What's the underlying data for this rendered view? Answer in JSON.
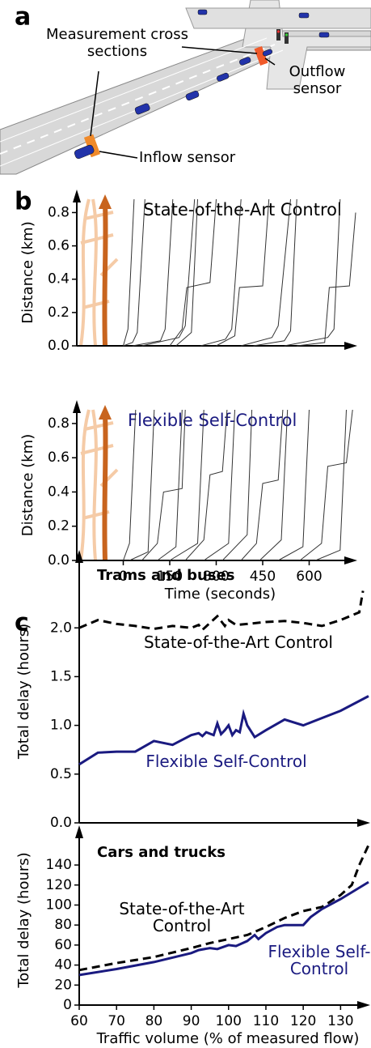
{
  "panel_labels": [
    "a",
    "b",
    "c"
  ],
  "illustration": {
    "annotations": [
      "Measurement cross sections",
      "Outflow sensor",
      "Inflow sensor"
    ]
  },
  "chart_data": [
    {
      "type": "line",
      "title": "State-of-the-Art Control",
      "title_color": "#000000",
      "ylabel": "Distance (km)",
      "xlim": [
        -150,
        750
      ],
      "ylim": [
        0,
        0.88
      ],
      "yticks": [
        {
          "value": 0,
          "label": "0.0"
        },
        0.2,
        0.4,
        0.6,
        0.8
      ],
      "series": [
        {
          "color": "#333333",
          "x": [
            0,
            15,
            35
          ],
          "values": [
            0,
            0.1,
            0.88
          ]
        },
        {
          "color": "#333333",
          "x": [
            0,
            30,
            45,
            70
          ],
          "values": [
            0,
            0.02,
            0.08,
            0.88
          ]
        },
        {
          "color": "#333333",
          "x": [
            30,
            120,
            135,
            160
          ],
          "values": [
            0,
            0.03,
            0.1,
            0.88
          ]
        },
        {
          "color": "#333333",
          "x": [
            60,
            180,
            200,
            230
          ],
          "values": [
            0,
            0.05,
            0.12,
            0.88
          ]
        },
        {
          "color": "#333333",
          "x": [
            150,
            190,
            205,
            280,
            300
          ],
          "values": [
            0,
            0.1,
            0.35,
            0.38,
            0.88
          ]
        },
        {
          "color": "#333333",
          "x": [
            170,
            220,
            240
          ],
          "values": [
            0,
            0.08,
            0.88
          ]
        },
        {
          "color": "#333333",
          "x": [
            250,
            330,
            350,
            380
          ],
          "values": [
            0,
            0.04,
            0.1,
            0.88
          ]
        },
        {
          "color": "#333333",
          "x": [
            300,
            360,
            375,
            450,
            470
          ],
          "values": [
            0,
            0.06,
            0.35,
            0.36,
            0.88
          ]
        },
        {
          "color": "#333333",
          "x": [
            380,
            480,
            500,
            540
          ],
          "values": [
            0,
            0.05,
            0.12,
            0.88
          ]
        },
        {
          "color": "#333333",
          "x": [
            420,
            520,
            540,
            560
          ],
          "values": [
            0,
            0.03,
            0.09,
            0.88
          ]
        },
        {
          "color": "#333333",
          "x": [
            520,
            660,
            680,
            700
          ],
          "values": [
            0,
            0.05,
            0.1,
            0.88
          ]
        },
        {
          "color": "#333333",
          "x": [
            560,
            650,
            665,
            730,
            750
          ],
          "values": [
            0,
            0.02,
            0.35,
            0.36,
            0.8
          ]
        }
      ]
    },
    {
      "type": "line",
      "title": "Flexible Self-Control",
      "title_color": "#1a1a80",
      "ylabel": "Distance (km)",
      "xlabel": "Time (seconds)",
      "xlim": [
        -150,
        750
      ],
      "ylim": [
        0,
        0.88
      ],
      "xticks": [
        0,
        150,
        300,
        450,
        600
      ],
      "yticks": [
        {
          "value": 0,
          "label": "0.0"
        },
        0.2,
        0.4,
        0.6,
        0.8
      ],
      "series": [
        {
          "color": "#333333",
          "x": [
            0,
            20,
            40
          ],
          "values": [
            0,
            0.1,
            0.88
          ]
        },
        {
          "color": "#333333",
          "x": [
            20,
            80,
            100
          ],
          "values": [
            0,
            0.05,
            0.88
          ]
        },
        {
          "color": "#333333",
          "x": [
            60,
            110,
            130,
            190,
            200
          ],
          "values": [
            0,
            0.1,
            0.4,
            0.42,
            0.88
          ]
        },
        {
          "color": "#333333",
          "x": [
            110,
            170,
            190
          ],
          "values": [
            0,
            0.08,
            0.88
          ]
        },
        {
          "color": "#333333",
          "x": [
            150,
            240,
            260
          ],
          "values": [
            0,
            0.1,
            0.88
          ]
        },
        {
          "color": "#333333",
          "x": [
            200,
            260,
            280,
            320,
            335
          ],
          "values": [
            0,
            0.12,
            0.5,
            0.52,
            0.88
          ]
        },
        {
          "color": "#333333",
          "x": [
            260,
            340,
            360
          ],
          "values": [
            0,
            0.1,
            0.88
          ]
        },
        {
          "color": "#333333",
          "x": [
            320,
            400,
            415
          ],
          "values": [
            0,
            0.15,
            0.88
          ]
        },
        {
          "color": "#333333",
          "x": [
            380,
            430,
            450,
            500,
            515
          ],
          "values": [
            0,
            0.1,
            0.45,
            0.47,
            0.88
          ]
        },
        {
          "color": "#333333",
          "x": [
            440,
            510,
            530
          ],
          "values": [
            0,
            0.12,
            0.88
          ]
        },
        {
          "color": "#333333",
          "x": [
            500,
            580,
            600
          ],
          "values": [
            0,
            0.08,
            0.88
          ]
        },
        {
          "color": "#333333",
          "x": [
            570,
            640,
            660,
            720,
            740
          ],
          "values": [
            0,
            0.1,
            0.55,
            0.57,
            0.88
          ]
        },
        {
          "color": "#333333",
          "x": [
            620,
            700,
            720
          ],
          "values": [
            0,
            0.06,
            0.88
          ]
        }
      ]
    },
    {
      "type": "line",
      "title": "Trams and buses",
      "ylabel": "Total delay (hours)",
      "xlim": [
        60,
        137.5
      ],
      "ylim": [
        0,
        2.7
      ],
      "yticks": [
        {
          "value": 0,
          "label": "0.0"
        },
        0.5,
        {
          "value": 1,
          "label": "1.0"
        },
        1.5,
        {
          "value": 2,
          "label": "2.0"
        }
      ],
      "series": [
        {
          "name": "State-of-the-Art Control",
          "color": "#000000",
          "linestyle": "dashed",
          "x": [
            60,
            65,
            70,
            75,
            80,
            85,
            90,
            92,
            93,
            95,
            97,
            99,
            100,
            102,
            105,
            110,
            115,
            120,
            125,
            130,
            135,
            136
          ],
          "values": [
            2.0,
            2.08,
            2.04,
            2.02,
            1.99,
            2.02,
            2.0,
            2.03,
            1.98,
            2.05,
            2.12,
            2.02,
            2.08,
            2.03,
            2.04,
            2.06,
            2.07,
            2.05,
            2.02,
            2.08,
            2.16,
            2.38
          ]
        },
        {
          "name": "Flexible Self-Control",
          "color": "#1a1a80",
          "linestyle": "solid",
          "x": [
            60,
            65,
            70,
            75,
            80,
            85,
            90,
            92,
            93,
            94,
            96,
            97,
            98,
            99,
            100,
            101,
            102,
            103,
            104,
            105,
            107,
            110,
            115,
            120,
            130,
            137.5
          ],
          "values": [
            0.6,
            0.72,
            0.73,
            0.73,
            0.84,
            0.8,
            0.9,
            0.92,
            0.89,
            0.93,
            0.9,
            1.02,
            0.91,
            0.95,
            1.0,
            0.9,
            0.95,
            0.93,
            1.12,
            1.0,
            0.88,
            0.95,
            1.06,
            1.0,
            1.15,
            1.3
          ]
        }
      ]
    },
    {
      "type": "line",
      "title": "Cars and trucks",
      "ylabel": "Total delay (hours)",
      "xlabel": "Traffic volume (% of measured flow)",
      "xlim": [
        60,
        137.5
      ],
      "ylim": [
        0,
        170
      ],
      "xticks": [
        60,
        70,
        80,
        90,
        100,
        110,
        120,
        130
      ],
      "yticks": [
        0,
        20,
        40,
        60,
        80,
        100,
        120,
        140
      ],
      "series": [
        {
          "name": "State-of-the-Art Control",
          "color": "#000000",
          "linestyle": "dashed",
          "x": [
            60,
            70,
            80,
            90,
            95,
            100,
            105,
            110,
            115,
            120,
            125,
            130,
            133,
            135,
            137.5
          ],
          "values": [
            35,
            42,
            48,
            57,
            62,
            66,
            70,
            78,
            87,
            94,
            98,
            110,
            120,
            140,
            160
          ]
        },
        {
          "name": "Flexible Self-Control",
          "color": "#1a1a80",
          "linestyle": "solid",
          "x": [
            60,
            70,
            80,
            90,
            92,
            95,
            97,
            100,
            102,
            105,
            107,
            108,
            110,
            113,
            115,
            120,
            122,
            125,
            130,
            137.5
          ],
          "values": [
            30,
            36,
            43,
            52,
            55,
            57,
            56,
            60,
            59,
            64,
            70,
            66,
            72,
            78,
            80,
            80,
            88,
            96,
            106,
            123
          ]
        }
      ]
    }
  ]
}
